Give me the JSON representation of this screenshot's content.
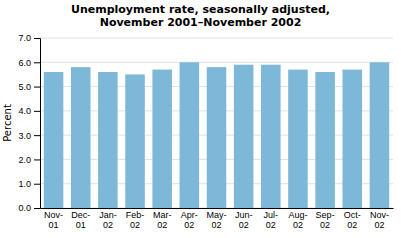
{
  "chart_data": {
    "type": "bar",
    "title": "Unemployment rate, seasonally adjusted,\nNovember 2001–November 2002",
    "ylabel": "Percent",
    "categories": [
      "Nov-\n01",
      "Dec-\n01",
      "Jan-\n02",
      "Feb-\n02",
      "Mar-\n02",
      "Apr-\n02",
      "May-\n02",
      "Jun-\n02",
      "Jul-\n02",
      "Aug-\n02",
      "Sep-\n02",
      "Oct-\n02",
      "Nov-\n02"
    ],
    "values": [
      5.6,
      5.8,
      5.6,
      5.5,
      5.7,
      6.0,
      5.8,
      5.9,
      5.9,
      5.7,
      5.6,
      5.7,
      6.0
    ],
    "color": "#7db8d8",
    "ylim": [
      0,
      7.0
    ],
    "yticks": [
      {
        "value": 0.0,
        "label": "0.0"
      },
      {
        "value": 1.0,
        "label": "1.0"
      },
      {
        "value": 2.0,
        "label": "2.0"
      },
      {
        "value": 3.0,
        "label": "3.0"
      },
      {
        "value": 4.0,
        "label": "4.0"
      },
      {
        "value": 5.0,
        "label": "5.0"
      },
      {
        "value": 6.0,
        "label": "6.0"
      },
      {
        "value": 7.0,
        "label": "7.0"
      }
    ],
    "grid": true
  }
}
